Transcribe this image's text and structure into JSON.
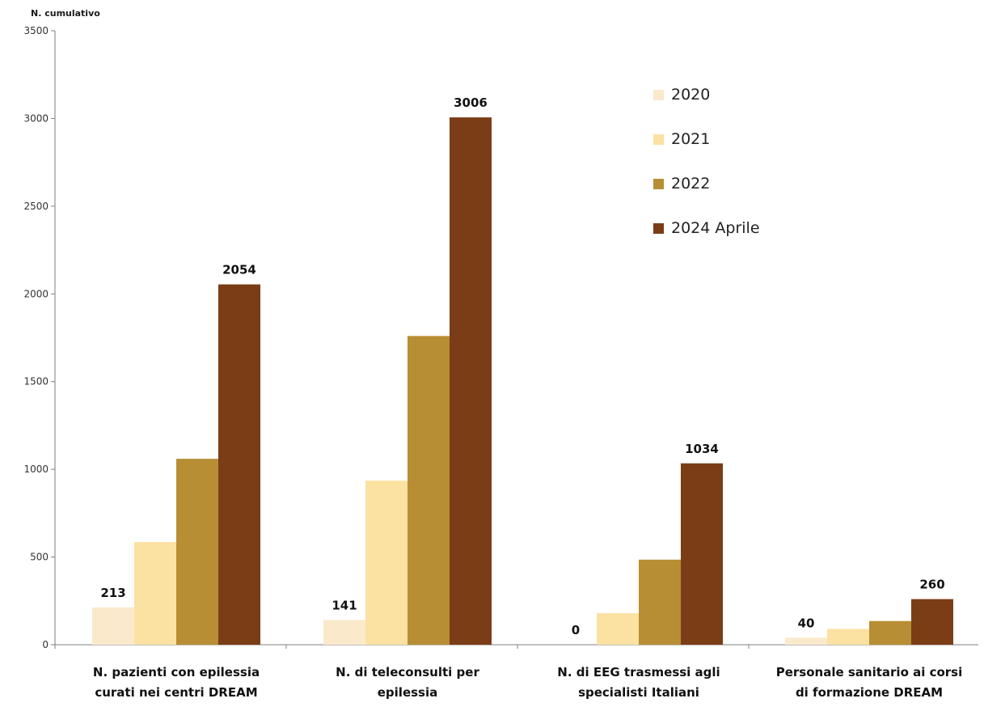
{
  "chart_data": {
    "type": "bar",
    "ylabel": "N. cumulativo",
    "ylim": [
      0,
      3500
    ],
    "yticks": [
      0,
      500,
      1000,
      1500,
      2000,
      2500,
      3000,
      3500
    ],
    "grid": false,
    "legend_position": "top-right",
    "categories": [
      [
        "N. pazienti con epilessia",
        "curati nei centri DREAM"
      ],
      [
        "N. di  teleconsulti per",
        "epilessia"
      ],
      [
        "N. di EEG trasmessi agli",
        "specialisti Italiani"
      ],
      [
        "Personale sanitario ai corsi",
        "di formazione DREAM"
      ]
    ],
    "series": [
      {
        "name": "2020",
        "color": "#fbe9cc",
        "values": [
          213,
          141,
          0,
          40
        ]
      },
      {
        "name": "2021",
        "color": "#fbe2a2",
        "values": [
          585,
          935,
          180,
          90
        ]
      },
      {
        "name": "2022",
        "color": "#b88e35",
        "values": [
          1060,
          1760,
          485,
          135
        ]
      },
      {
        "name": "2024 Aprile",
        "color": "#7b3d16",
        "values": [
          2054,
          3006,
          1034,
          260
        ]
      }
    ],
    "data_labels": [
      {
        "category": 0,
        "series": 0,
        "text": "213"
      },
      {
        "category": 0,
        "series": 3,
        "text": "2054"
      },
      {
        "category": 1,
        "series": 0,
        "text": "141"
      },
      {
        "category": 1,
        "series": 3,
        "text": "3006"
      },
      {
        "category": 2,
        "series": 0,
        "text": "0"
      },
      {
        "category": 2,
        "series": 3,
        "text": "1034"
      },
      {
        "category": 3,
        "series": 0,
        "text": "40"
      },
      {
        "category": 3,
        "series": 3,
        "text": "260"
      }
    ]
  }
}
